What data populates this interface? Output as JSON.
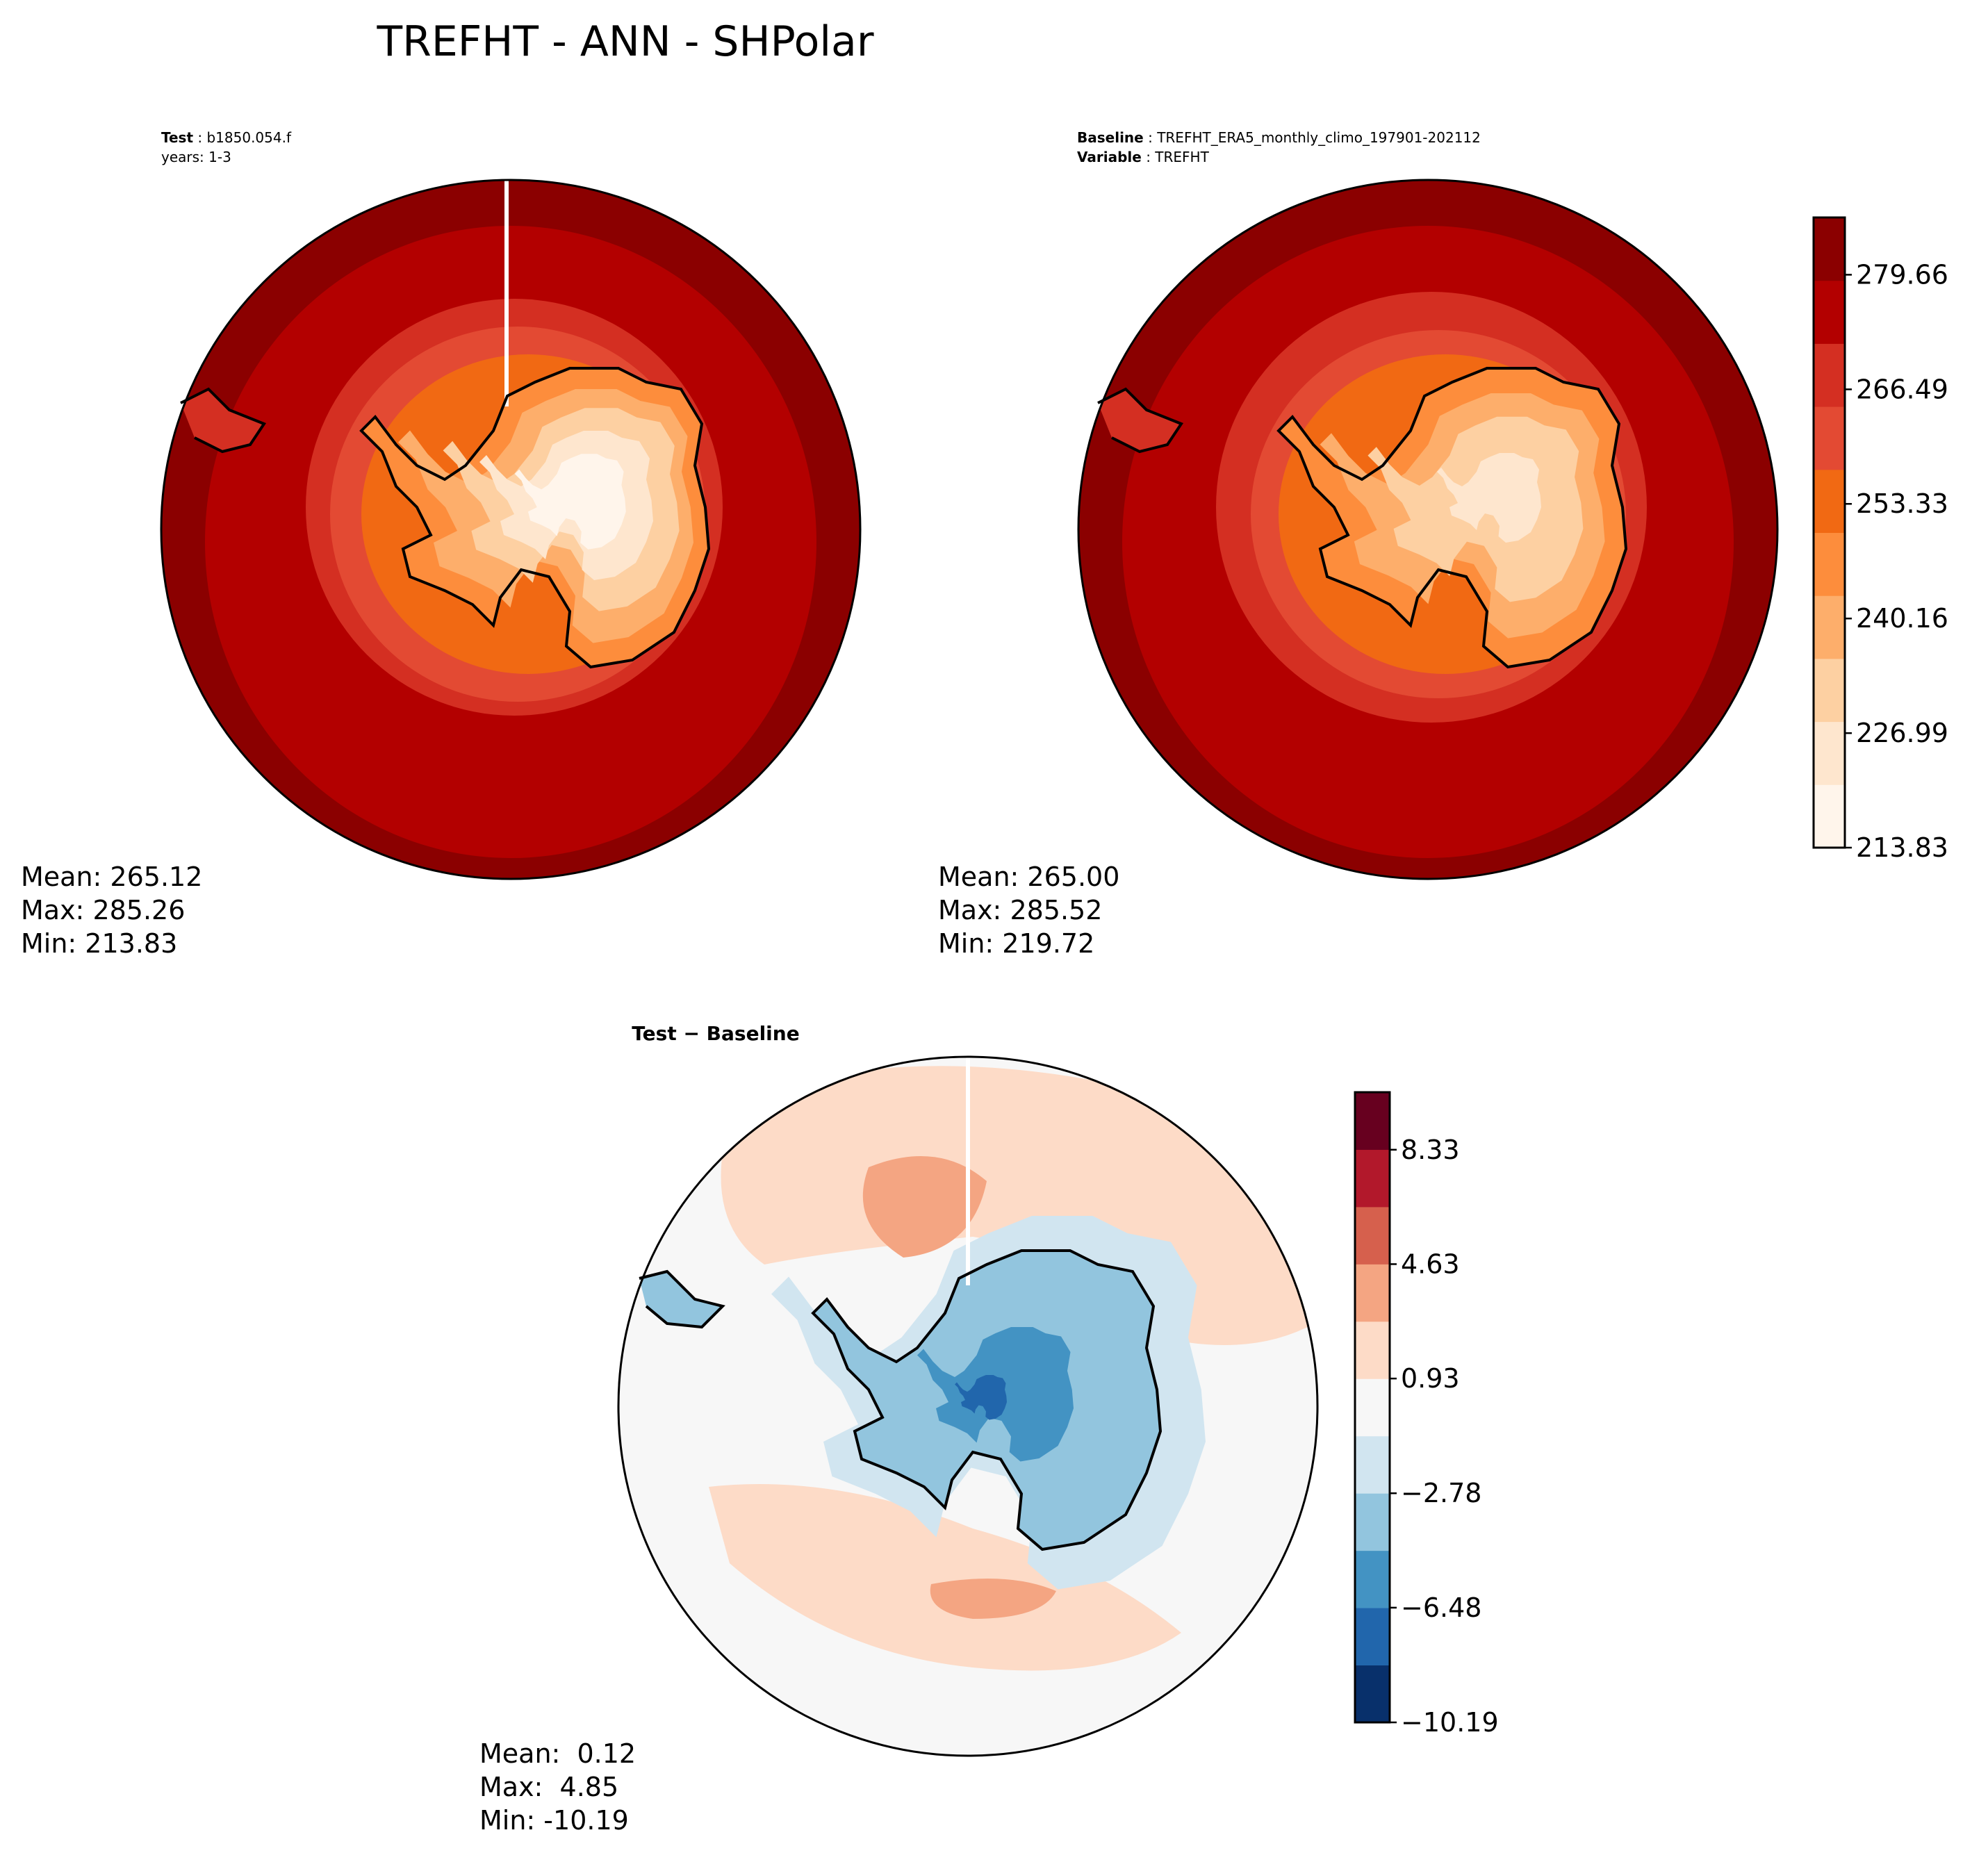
{
  "figure": {
    "title": "TREFHT - ANN - SHPolar"
  },
  "panels": {
    "test": {
      "label_bold": "Test",
      "label_value": "b1850.054.f",
      "years": "years: 1-3",
      "stats": {
        "mean": "Mean: 265.12",
        "max": "Max: 285.26",
        "min": "Min: 213.83"
      }
    },
    "baseline": {
      "label_bold": "Baseline",
      "label_value": "TREFHT_ERA5_monthly_climo_197901-202112",
      "variable_bold": "Variable",
      "variable_value": "TREFHT",
      "stats": {
        "mean": "Mean: 265.00",
        "max": "Max: 285.52",
        "min": "Min: 219.72"
      }
    },
    "diff": {
      "title": "Test − Baseline",
      "stats": {
        "mean": "Mean:  0.12",
        "max": "Max:  4.85",
        "min": "Min: -10.19"
      }
    }
  },
  "colorbars": {
    "temperature": {
      "ticks": [
        "213.83",
        "226.99",
        "240.16",
        "253.33",
        "266.49",
        "279.66"
      ],
      "tick_values": [
        213.83,
        226.99,
        240.16,
        253.33,
        266.49,
        279.66
      ],
      "range": [
        213.83,
        286.24
      ],
      "colors": [
        "#fff5eb",
        "#fee6ce",
        "#fdd0a2",
        "#fdae6b",
        "#fd8d3c",
        "#f16913",
        "#e34a33",
        "#d42f22",
        "#b30000",
        "#8b0000"
      ]
    },
    "difference": {
      "ticks": [
        "−10.19",
        "−6.48",
        "−2.78",
        "0.93",
        "4.63",
        "8.33"
      ],
      "tick_values": [
        -10.19,
        -6.48,
        -2.78,
        0.93,
        4.63,
        8.33
      ],
      "range": [
        -10.19,
        10.19
      ],
      "colors": [
        "#08306b",
        "#2166ac",
        "#4393c3",
        "#92c5de",
        "#d1e5f0",
        "#f7f7f7",
        "#fddbc7",
        "#f4a582",
        "#d6604d",
        "#b2182b",
        "#67001f"
      ]
    }
  },
  "chart_data": [
    {
      "type": "map",
      "title": "Test: b1850.054.f",
      "projection": "south polar stereographic",
      "variable": "TREFHT",
      "mean": 265.12,
      "max": 285.26,
      "min": 213.83
    },
    {
      "type": "map",
      "title": "Baseline: TREFHT_ERA5_monthly_climo_197901-202112",
      "projection": "south polar stereographic",
      "variable": "TREFHT",
      "mean": 265.0,
      "max": 285.52,
      "min": 219.72
    },
    {
      "type": "map",
      "title": "Test − Baseline",
      "projection": "south polar stereographic",
      "mean": 0.12,
      "max": 4.85,
      "min": -10.19
    }
  ]
}
